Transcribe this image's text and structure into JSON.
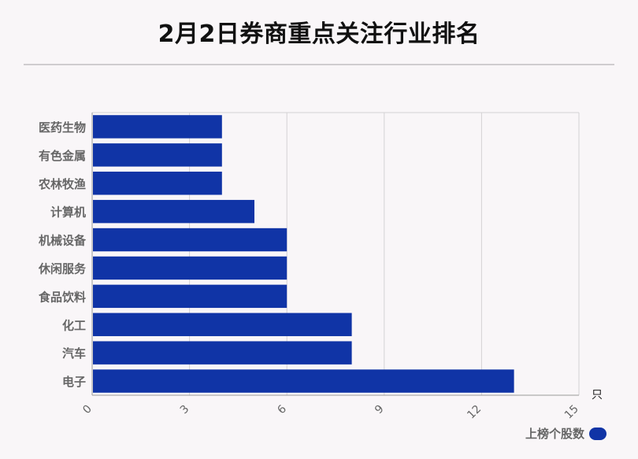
{
  "title": "2月2日券商重点关注行业排名",
  "unit": "只",
  "colors": {
    "bar": "#1034a6",
    "grid": "#d4d2d4",
    "axis": "#999999"
  },
  "legend": {
    "label": "上榜个股数"
  },
  "chart_data": {
    "type": "bar",
    "orientation": "horizontal",
    "title": "2月2日券商重点关注行业排名",
    "categories": [
      "医药生物",
      "有色金属",
      "农林牧渔",
      "计算机",
      "机械设备",
      "休闲服务",
      "食品饮料",
      "化工",
      "汽车",
      "电子"
    ],
    "series": [
      {
        "name": "上榜个股数",
        "values": [
          4,
          4,
          4,
          5,
          6,
          6,
          6,
          8,
          8,
          13
        ]
      }
    ],
    "xlim": [
      0,
      15
    ],
    "xticks": [
      0,
      3,
      6,
      9,
      12,
      15
    ],
    "xlabel": "只",
    "ylabel": "",
    "grid": true,
    "legend_position": "bottom-right"
  }
}
